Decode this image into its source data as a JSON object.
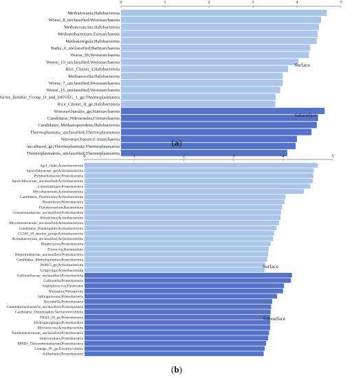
{
  "chart_data": [
    {
      "type": "bar",
      "orientation": "horizontal",
      "panel_label": "(a)",
      "xlim": [
        0,
        5
      ],
      "xticks": [
        "0",
        "1",
        "2",
        "3",
        "4",
        "5"
      ],
      "grid": false,
      "groups": [
        {
          "name": "Surface",
          "color": "#a9c5ea",
          "categories": [
            "Methanosaeta;Halobacterota",
            "Woese_8_unclassified;Woesearchaeota",
            "Methanosarcina;Halobacterota",
            "Methanobacterium;Euryarchaeota",
            "Methanoregula;Halobacterota",
            "Bathy_6_unclassified;Bathyarchaeota",
            "Woese_5b;Woesearchaeota",
            "Woese_10_unclassified;Woesearchaeota",
            "Rice_Cluster_I;Halobacterota",
            "Methanocella;Halobacterota",
            "Woese_7_unclassified;Woesearchaeota",
            "Woese_16_unclassified;Woesearchaeota",
            "Marine_Benthic_Group_D_and_DHVEG_1_ge;Thermoplasmatota",
            "Rice_Cluster_II_ge;Halobacterota"
          ],
          "values": [
            4.68,
            4.55,
            4.5,
            4.47,
            4.45,
            4.3,
            4.27,
            4.03,
            3.8,
            3.68,
            3.68,
            3.62,
            3.52,
            3.51
          ]
        },
        {
          "name": "Subsurface",
          "color": "#5472c8",
          "categories": [
            "Woesearchaeales_ge;Nanoarchaeota",
            "Candidatus_Nitrosotalea;Crenarchaeota",
            "Candidatus_Methanoperedens;Halobacterota",
            "Thermoplasmata_unclassified;Thermoplasmatota",
            "Nitrosoarchaeum;Crenarchaeota",
            "uncultured_ge;Thermoplasmata;Thermoplasmatota",
            "Thermoplasmatota_unclassified;Thermoplasmatota"
          ],
          "values": [
            4.63,
            4.48,
            4.45,
            4.33,
            4.0,
            3.97,
            3.78
          ]
        }
      ]
    },
    {
      "type": "bar",
      "orientation": "horizontal",
      "panel_label": "(b)",
      "xlim": [
        0,
        5
      ],
      "xticks": [
        "0",
        "1",
        "2",
        "3",
        "4",
        "5"
      ],
      "grid": false,
      "groups": [
        {
          "name": "Surface",
          "color": "#a9c5ea",
          "categories": [
            "hgcI_clade;Actinobacteriota",
            "Sporichthyaceae_ge;Actinobacteriota",
            "Polynucleobacter;Proteobacteria",
            "Sporichthyaceae_unclassified;Actinobacteriota",
            "Limnohabitans;Proteobacteria",
            "Mycobacterium;Actinobacteriota",
            "Candidatus_Planktoluna;Actinobacteriota",
            "Rhodoferax;Proteobacteria",
            "Flavobacterium;Bacteroidota",
            "Comamonadaceae_unclassified;Proteobacteria",
            "Rhodoluna;Actinobacteriota",
            "Microbacteriaceae_unclassified;Actinobacteriota",
            "Candidatus_Planktophila;Actinobacteriota",
            "CL500_29_marine_group;Actinobacteriota",
            "Actinobacteriota_unclassified;Actinobacteriota",
            "Rhodovarius;Proteobacteria",
            "Fluviicola;Bacteroidota",
            "Beijerinckiaceae_unclassified;Proteobacteria",
            "Candidatus_Methylopumilus;Proteobacteria",
            "PeM15_ge;Actinobacteriota",
            "Longivirga;Actinobacteriota"
          ],
          "values": [
            4.7,
            4.62,
            4.61,
            4.6,
            4.55,
            4.42,
            4.05,
            4.03,
            3.98,
            3.96,
            3.95,
            3.92,
            3.87,
            3.82,
            3.8,
            3.75,
            3.71,
            3.7,
            3.68,
            3.64,
            3.63
          ]
        },
        {
          "name": "Subsurface",
          "color": "#5472c8",
          "categories": [
            "Gallionellaceae_unclassified;Proteobacteria",
            "Gallionella;Proteobacteria",
            "Staphylococcus;Firmicutes",
            "Nitrospira;Nitrospirota",
            "Sphingomonas;Proteobacteria",
            "Reyranella;Proteobacteria",
            "Gammaproteobacteria_unclassified;Proteobacteria",
            "Candidatus_Omnitrophus;Verrucomicrobiota",
            "TRA3_20_ge;Proteobacteria",
            "Hydrogenophaga;Proteobacteria",
            "Micrococcus;Actinobacteriota",
            "Xanthobacteraceae_unclassified;Proteobacteria",
            "Sideroxydans;Proteobacteria",
            "MND1_Nitrosomonadaceae;Proteobacteria",
            "Lineage_IV_ge;Elusimicrobiota",
            "Sulfuritalea;Proteobacteria"
          ],
          "values": [
            4.18,
            4.16,
            4.02,
            4.0,
            3.88,
            3.78,
            3.76,
            3.75,
            3.74,
            3.74,
            3.74,
            3.72,
            3.7,
            3.66,
            3.63,
            3.61
          ]
        }
      ]
    }
  ]
}
